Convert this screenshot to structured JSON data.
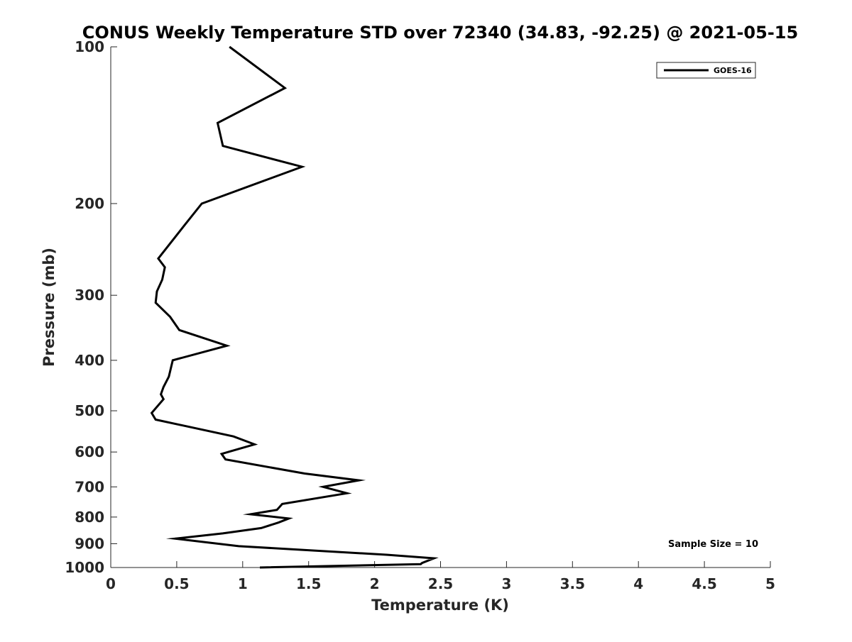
{
  "chart_data": {
    "type": "line",
    "title": "CONUS Weekly Temperature STD over 72340 (34.83, -92.25) @ 2021-05-15",
    "xlabel": "Temperature (K)",
    "ylabel": "Pressure (mb)",
    "xlim": [
      0,
      5
    ],
    "ylim": [
      100,
      1000
    ],
    "yscale": "log",
    "yreversed": true,
    "xticks": [
      "0",
      "0.5",
      "1",
      "1.5",
      "2",
      "2.5",
      "3",
      "3.5",
      "4",
      "4.5",
      "5"
    ],
    "yticks": [
      "100",
      "200",
      "300",
      "400",
      "500",
      "600",
      "700",
      "800",
      "900",
      "1000"
    ],
    "legend_position": "top-right",
    "grid": false,
    "annotation": "Sample Size = 10",
    "series": [
      {
        "name": "GOES-16",
        "color": "#000000",
        "x": [
          0.9,
          1.32,
          0.81,
          0.85,
          1.45,
          0.69,
          0.56,
          0.36,
          0.41,
          0.39,
          0.35,
          0.34,
          0.45,
          0.52,
          0.88,
          0.47,
          0.44,
          0.4,
          0.38,
          0.4,
          0.31,
          0.34,
          0.93,
          1.09,
          0.84,
          0.87,
          1.47,
          1.88,
          1.61,
          1.79,
          1.3,
          1.26,
          1.06,
          1.35,
          1.27,
          1.14,
          0.85,
          0.49,
          0.97,
          2.09,
          2.45,
          2.36,
          2.35,
          1.13
        ],
        "y": [
          100,
          120,
          140,
          155,
          170,
          200,
          220,
          255,
          265,
          280,
          295,
          310,
          330,
          350,
          375,
          400,
          430,
          450,
          465,
          475,
          505,
          520,
          560,
          580,
          605,
          620,
          660,
          680,
          700,
          720,
          755,
          775,
          790,
          805,
          820,
          840,
          860,
          880,
          910,
          945,
          960,
          980,
          985,
          1000
        ]
      }
    ]
  }
}
